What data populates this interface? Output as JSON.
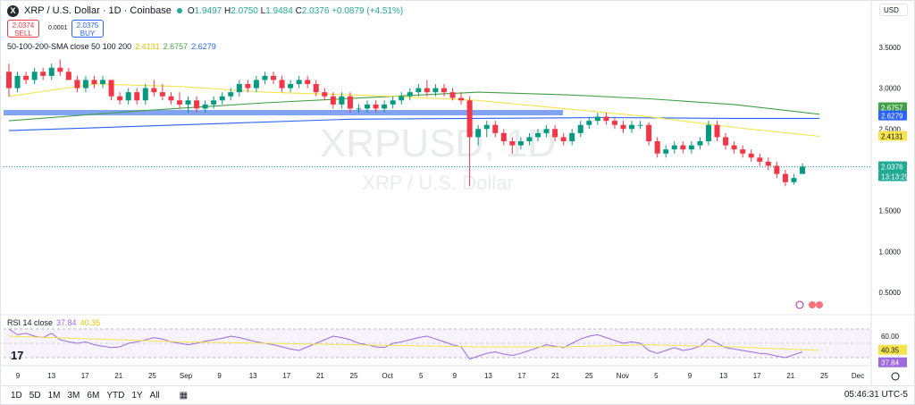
{
  "header": {
    "logo": "X",
    "title": "XRP / U.S. Dollar · 1D · Coinbase",
    "open_label": "O",
    "open": "1.9497",
    "high_label": "H",
    "high": "2.0750",
    "low_label": "L",
    "low": "1.9484",
    "close_label": "C",
    "close": "2.0376",
    "change": "+0.0879 (+4.51%)"
  },
  "trade": {
    "sell_price": "2.0374",
    "sell_label": "SELL",
    "spread": "0.0001",
    "buy_price": "2.0375",
    "buy_label": "BUY"
  },
  "currency": "USD",
  "sma_legend": {
    "label": "50-100-200-SMA close 50 100 200",
    "v50": "2.4131",
    "v100": "2.6757",
    "v200": "2.6279"
  },
  "rsi_legend": {
    "label": "RSI 14 close",
    "rsi": "37.84",
    "ma": "40.35"
  },
  "watermark": {
    "symbol": "XRPUSD, 1D",
    "name": "XRP / U.S. Dollar"
  },
  "timeframes": [
    "1D",
    "5D",
    "1M",
    "3M",
    "6M",
    "YTD",
    "1Y",
    "All"
  ],
  "clock": "05:46:31 UTC-5",
  "colors": {
    "up": "#089981",
    "down": "#f23645",
    "sma50": "#f5e44c",
    "sma100": "#43a047",
    "sma200": "#2962ff",
    "rsi": "#9c6ade",
    "rsi_ma": "#f5e44c",
    "zone": "#6c94f0"
  },
  "chart_data": {
    "type": "candlestick",
    "price_axis": [
      "3.5000",
      "3.0000",
      "2.5000",
      "2.0000",
      "1.5000",
      "1.0000",
      "0.5000"
    ],
    "ylim": [
      0.25,
      3.75
    ],
    "price_labels": {
      "sma100": "2.6757",
      "sma200": "2.6279",
      "sma50": "2.4131",
      "last": "2.0376",
      "countdown": "13:13:29"
    },
    "x_ticks": [
      "9",
      "13",
      "17",
      "21",
      "25",
      "Sep",
      "9",
      "13",
      "17",
      "21",
      "25",
      "Oct",
      "5",
      "9",
      "13",
      "17",
      "21",
      "25",
      "Nov",
      "5",
      "9",
      "13",
      "17",
      "21",
      "25",
      "Dec"
    ],
    "horizontal_zone": 2.7,
    "candles": [
      [
        3.2,
        3.3,
        2.9,
        3.0
      ],
      [
        3.0,
        3.2,
        2.95,
        3.15
      ],
      [
        3.15,
        3.2,
        3.05,
        3.1
      ],
      [
        3.1,
        3.25,
        3.05,
        3.2
      ],
      [
        3.2,
        3.25,
        3.1,
        3.15
      ],
      [
        3.15,
        3.3,
        3.1,
        3.25
      ],
      [
        3.25,
        3.35,
        3.15,
        3.2
      ],
      [
        3.2,
        3.25,
        3.1,
        3.1
      ],
      [
        3.1,
        3.15,
        2.95,
        3.0
      ],
      [
        3.0,
        3.15,
        2.95,
        3.1
      ],
      [
        3.1,
        3.15,
        3.0,
        3.05
      ],
      [
        3.05,
        3.15,
        3.0,
        3.1
      ],
      [
        3.1,
        3.1,
        2.85,
        2.9
      ],
      [
        2.9,
        2.95,
        2.8,
        2.85
      ],
      [
        2.85,
        3.0,
        2.8,
        2.95
      ],
      [
        2.95,
        3.0,
        2.8,
        2.85
      ],
      [
        2.85,
        3.05,
        2.8,
        3.0
      ],
      [
        3.0,
        3.1,
        2.9,
        2.95
      ],
      [
        2.95,
        3.05,
        2.85,
        2.9
      ],
      [
        2.9,
        2.95,
        2.8,
        2.85
      ],
      [
        2.85,
        2.95,
        2.75,
        2.8
      ],
      [
        2.8,
        2.9,
        2.7,
        2.85
      ],
      [
        2.85,
        2.9,
        2.7,
        2.75
      ],
      [
        2.75,
        2.85,
        2.7,
        2.8
      ],
      [
        2.8,
        2.9,
        2.75,
        2.85
      ],
      [
        2.85,
        2.95,
        2.8,
        2.9
      ],
      [
        2.9,
        3.0,
        2.85,
        2.95
      ],
      [
        2.95,
        3.1,
        2.9,
        3.05
      ],
      [
        3.05,
        3.1,
        2.95,
        3.0
      ],
      [
        3.0,
        3.15,
        2.95,
        3.1
      ],
      [
        3.1,
        3.2,
        3.05,
        3.15
      ],
      [
        3.15,
        3.2,
        3.05,
        3.1
      ],
      [
        3.1,
        3.15,
        2.95,
        3.0
      ],
      [
        3.0,
        3.1,
        2.95,
        3.05
      ],
      [
        3.05,
        3.15,
        3.0,
        3.1
      ],
      [
        3.1,
        3.15,
        3.0,
        3.05
      ],
      [
        3.05,
        3.1,
        2.9,
        2.95
      ],
      [
        2.95,
        3.0,
        2.85,
        2.9
      ],
      [
        2.9,
        2.95,
        2.75,
        2.8
      ],
      [
        2.8,
        2.95,
        2.75,
        2.9
      ],
      [
        2.9,
        2.95,
        2.7,
        2.75
      ],
      [
        2.75,
        2.8,
        2.7,
        2.75
      ],
      [
        2.75,
        2.85,
        2.7,
        2.8
      ],
      [
        2.8,
        2.85,
        2.7,
        2.75
      ],
      [
        2.75,
        2.85,
        2.7,
        2.8
      ],
      [
        2.8,
        2.9,
        2.75,
        2.85
      ],
      [
        2.85,
        2.95,
        2.8,
        2.9
      ],
      [
        2.9,
        3.0,
        2.85,
        2.95
      ],
      [
        2.95,
        3.05,
        2.9,
        3.0
      ],
      [
        3.0,
        3.1,
        2.9,
        2.95
      ],
      [
        2.95,
        3.05,
        2.9,
        3.0
      ],
      [
        3.0,
        3.05,
        2.9,
        2.95
      ],
      [
        2.95,
        3.0,
        2.85,
        2.88
      ],
      [
        2.88,
        2.95,
        2.8,
        2.85
      ],
      [
        2.85,
        2.9,
        1.8,
        2.4
      ],
      [
        2.4,
        2.55,
        2.3,
        2.5
      ],
      [
        2.5,
        2.6,
        2.4,
        2.55
      ],
      [
        2.55,
        2.6,
        2.4,
        2.45
      ],
      [
        2.45,
        2.5,
        2.3,
        2.35
      ],
      [
        2.35,
        2.4,
        2.2,
        2.3
      ],
      [
        2.3,
        2.4,
        2.25,
        2.35
      ],
      [
        2.35,
        2.45,
        2.3,
        2.4
      ],
      [
        2.4,
        2.5,
        2.35,
        2.45
      ],
      [
        2.45,
        2.55,
        2.4,
        2.5
      ],
      [
        2.5,
        2.55,
        2.35,
        2.4
      ],
      [
        2.4,
        2.45,
        2.3,
        2.35
      ],
      [
        2.35,
        2.5,
        2.3,
        2.45
      ],
      [
        2.45,
        2.6,
        2.4,
        2.55
      ],
      [
        2.55,
        2.65,
        2.5,
        2.6
      ],
      [
        2.6,
        2.7,
        2.55,
        2.65
      ],
      [
        2.65,
        2.7,
        2.55,
        2.6
      ],
      [
        2.6,
        2.65,
        2.5,
        2.55
      ],
      [
        2.55,
        2.6,
        2.45,
        2.5
      ],
      [
        2.5,
        2.6,
        2.45,
        2.55
      ],
      [
        2.55,
        2.6,
        2.5,
        2.55
      ],
      [
        2.55,
        2.58,
        2.3,
        2.35
      ],
      [
        2.35,
        2.4,
        2.15,
        2.2
      ],
      [
        2.2,
        2.3,
        2.15,
        2.25
      ],
      [
        2.25,
        2.35,
        2.2,
        2.3
      ],
      [
        2.3,
        2.35,
        2.2,
        2.25
      ],
      [
        2.25,
        2.35,
        2.2,
        2.3
      ],
      [
        2.3,
        2.4,
        2.25,
        2.35
      ],
      [
        2.35,
        2.6,
        2.3,
        2.55
      ],
      [
        2.55,
        2.6,
        2.35,
        2.4
      ],
      [
        2.4,
        2.45,
        2.25,
        2.3
      ],
      [
        2.3,
        2.35,
        2.2,
        2.25
      ],
      [
        2.25,
        2.3,
        2.15,
        2.2
      ],
      [
        2.2,
        2.25,
        2.1,
        2.15
      ],
      [
        2.15,
        2.2,
        2.05,
        2.1
      ],
      [
        2.1,
        2.15,
        2.0,
        2.05
      ],
      [
        2.05,
        2.1,
        1.9,
        1.95
      ],
      [
        1.95,
        2.0,
        1.8,
        1.85
      ],
      [
        1.85,
        1.95,
        1.82,
        1.9
      ],
      [
        1.95,
        2.08,
        1.95,
        2.04
      ]
    ],
    "sma50": [
      [
        0,
        2.9
      ],
      [
        10,
        3.05
      ],
      [
        20,
        3.02
      ],
      [
        30,
        2.95
      ],
      [
        45,
        2.9
      ],
      [
        55,
        2.85
      ],
      [
        65,
        2.75
      ],
      [
        75,
        2.65
      ],
      [
        85,
        2.52
      ],
      [
        95,
        2.41
      ]
    ],
    "sma100": [
      [
        0,
        2.6
      ],
      [
        15,
        2.72
      ],
      [
        30,
        2.82
      ],
      [
        45,
        2.9
      ],
      [
        55,
        2.95
      ],
      [
        65,
        2.92
      ],
      [
        75,
        2.87
      ],
      [
        85,
        2.8
      ],
      [
        95,
        2.68
      ]
    ],
    "sma200": [
      [
        0,
        2.48
      ],
      [
        20,
        2.55
      ],
      [
        40,
        2.62
      ],
      [
        55,
        2.63
      ],
      [
        70,
        2.64
      ],
      [
        85,
        2.63
      ],
      [
        95,
        2.63
      ]
    ],
    "rsi": {
      "axis": [
        "60.00"
      ],
      "labels": {
        "ma": "40.35",
        "rsi": "37.84"
      },
      "ylim": [
        20,
        80
      ],
      "rsi_values": [
        70,
        62,
        64,
        60,
        58,
        64,
        55,
        52,
        50,
        52,
        48,
        46,
        44,
        45,
        50,
        52,
        55,
        58,
        56,
        52,
        50,
        48,
        50,
        53,
        55,
        57,
        60,
        58,
        55,
        52,
        50,
        48,
        45,
        42,
        40,
        45,
        50,
        55,
        60,
        58,
        55,
        50,
        48,
        45,
        44,
        50,
        52,
        55,
        58,
        60,
        56,
        52,
        48,
        45,
        28,
        32,
        36,
        38,
        35,
        33,
        36,
        40,
        44,
        48,
        46,
        44,
        50,
        56,
        60,
        62,
        58,
        54,
        50,
        52,
        50,
        40,
        36,
        40,
        44,
        40,
        42,
        46,
        56,
        50,
        44,
        42,
        40,
        38,
        36,
        35,
        32,
        30,
        34,
        38
      ],
      "rsi_ma": [
        [
          0,
          60
        ],
        [
          20,
          52
        ],
        [
          40,
          48
        ],
        [
          55,
          45
        ],
        [
          65,
          45
        ],
        [
          75,
          48
        ],
        [
          85,
          45
        ],
        [
          95,
          40
        ]
      ]
    }
  }
}
